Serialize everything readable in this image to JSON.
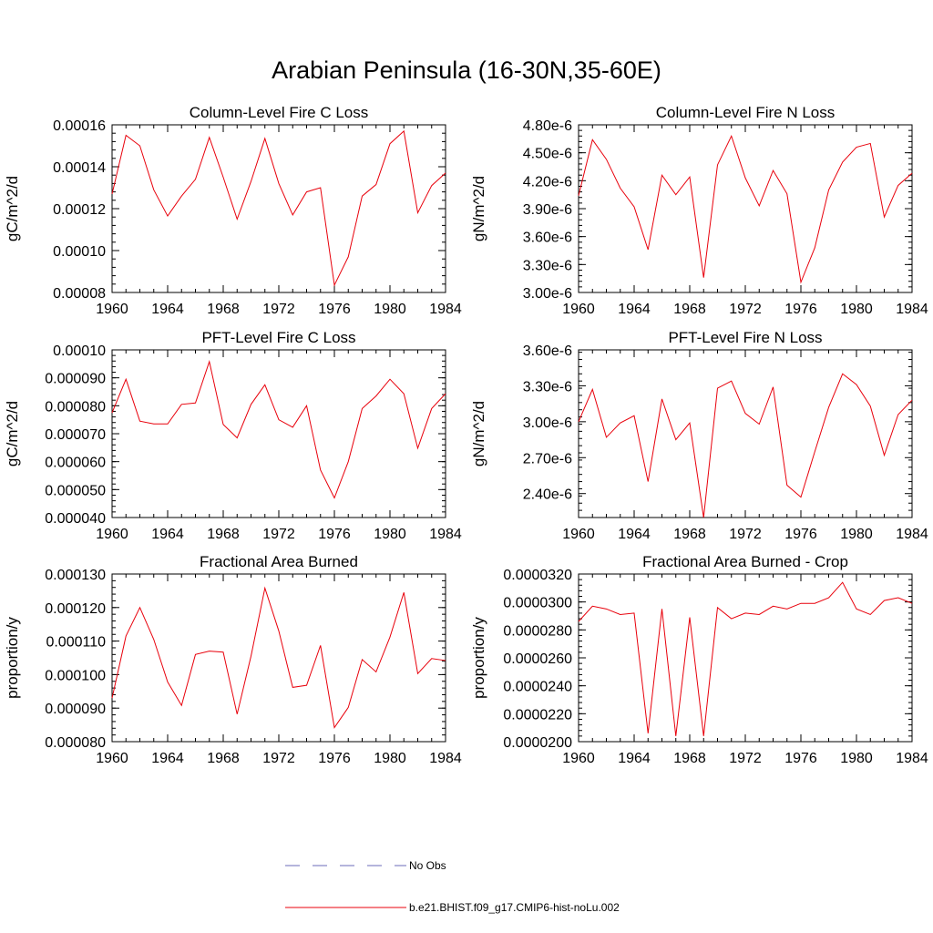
{
  "figure": {
    "title": "Arabian Peninsula (16-30N,35-60E)",
    "line_color": "#e8000b",
    "obs_color": "#6b6bb8"
  },
  "legend": {
    "items": [
      {
        "label": "No Obs",
        "style": "dashed",
        "color": "#6b6bb8"
      },
      {
        "label": "b.e21.BHIST.f09_g17.CMIP6-hist-noLu.002",
        "style": "solid",
        "color": "#e8000b"
      }
    ]
  },
  "chart_data": [
    {
      "type": "line",
      "title": "Column-Level Fire C Loss",
      "ylabel": "gC/m^2/d",
      "xlim": [
        1960,
        1984
      ],
      "ylim": [
        8e-05,
        0.00016
      ],
      "xticks": [
        1960,
        1964,
        1968,
        1972,
        1976,
        1980,
        1984
      ],
      "yticks": [
        8e-05,
        0.0001,
        0.00012,
        0.00014,
        0.00016
      ],
      "ytick_labels": [
        "0.00008",
        "0.00010",
        "0.00012",
        "0.00014",
        "0.00016"
      ],
      "x": [
        1960,
        1961,
        1962,
        1963,
        1964,
        1965,
        1966,
        1967,
        1968,
        1969,
        1970,
        1971,
        1972,
        1973,
        1974,
        1975,
        1976,
        1977,
        1978,
        1979,
        1980,
        1981,
        1982,
        1983,
        1984
      ],
      "series": [
        {
          "name": "b.e21.BHIST.f09_g17.CMIP6-hist-noLu.002",
          "values": [
            0.000127,
            0.000155,
            0.00015,
            0.000129,
            0.0001165,
            0.000126,
            0.000134,
            0.000154,
            0.000135,
            0.000115,
            0.000133,
            0.0001535,
            0.000132,
            0.000117,
            0.000128,
            0.00013,
            8.35e-05,
            9.7e-05,
            0.000126,
            0.0001315,
            0.000151,
            0.000157,
            0.000118,
            0.000131,
            0.000137
          ]
        }
      ]
    },
    {
      "type": "line",
      "title": "Column-Level Fire N Loss",
      "ylabel": "gN/m^2/d",
      "xlim": [
        1960,
        1984
      ],
      "ylim": [
        3e-06,
        4.8e-06
      ],
      "xticks": [
        1960,
        1964,
        1968,
        1972,
        1976,
        1980,
        1984
      ],
      "yticks": [
        3e-06,
        3.3e-06,
        3.6e-06,
        3.9e-06,
        4.2e-06,
        4.5e-06,
        4.8e-06
      ],
      "ytick_labels": [
        "3.00e-6",
        "3.30e-6",
        "3.60e-6",
        "3.90e-6",
        "4.20e-6",
        "4.50e-6",
        "4.80e-6"
      ],
      "x": [
        1960,
        1961,
        1962,
        1963,
        1964,
        1965,
        1966,
        1967,
        1968,
        1969,
        1970,
        1971,
        1972,
        1973,
        1974,
        1975,
        1976,
        1977,
        1978,
        1979,
        1980,
        1981,
        1982,
        1983,
        1984
      ],
      "series": [
        {
          "name": "b.e21.BHIST.f09_g17.CMIP6-hist-noLu.002",
          "values": [
            4.04e-06,
            4.64e-06,
            4.43e-06,
            4.12e-06,
            3.92e-06,
            3.46e-06,
            4.26e-06,
            4.05e-06,
            4.24e-06,
            3.16e-06,
            4.37e-06,
            4.68e-06,
            4.23e-06,
            3.93e-06,
            4.31e-06,
            4.06e-06,
            3.11e-06,
            3.48e-06,
            4.1e-06,
            4.4e-06,
            4.56e-06,
            4.6e-06,
            3.81e-06,
            4.15e-06,
            4.28e-06
          ]
        }
      ]
    },
    {
      "type": "line",
      "title": "PFT-Level Fire C Loss",
      "ylabel": "gC/m^2/d",
      "xlim": [
        1960,
        1984
      ],
      "ylim": [
        4e-05,
        0.0001
      ],
      "xticks": [
        1960,
        1964,
        1968,
        1972,
        1976,
        1980,
        1984
      ],
      "yticks": [
        4e-05,
        5e-05,
        6e-05,
        7e-05,
        8e-05,
        9e-05,
        0.0001
      ],
      "ytick_labels": [
        "0.000040",
        "0.000050",
        "0.000060",
        "0.000070",
        "0.000080",
        "0.000090",
        "0.00010"
      ],
      "x": [
        1960,
        1961,
        1962,
        1963,
        1964,
        1965,
        1966,
        1967,
        1968,
        1969,
        1970,
        1971,
        1972,
        1973,
        1974,
        1975,
        1976,
        1977,
        1978,
        1979,
        1980,
        1981,
        1982,
        1983,
        1984
      ],
      "series": [
        {
          "name": "b.e21.BHIST.f09_g17.CMIP6-hist-noLu.002",
          "values": [
            7.75e-05,
            8.95e-05,
            7.45e-05,
            7.35e-05,
            7.35e-05,
            8.05e-05,
            8.1e-05,
            9.58e-05,
            7.33e-05,
            6.85e-05,
            8.05e-05,
            8.75e-05,
            7.5e-05,
            7.23e-05,
            8e-05,
            5.7e-05,
            4.7e-05,
            6e-05,
            7.9e-05,
            8.35e-05,
            8.95e-05,
            8.43e-05,
            6.48e-05,
            7.9e-05,
            8.43e-05
          ]
        }
      ]
    },
    {
      "type": "line",
      "title": "PFT-Level Fire N Loss",
      "ylabel": "gN/m^2/d",
      "xlim": [
        1960,
        1984
      ],
      "ylim": [
        2.2e-06,
        3.6e-06
      ],
      "xticks": [
        1960,
        1964,
        1968,
        1972,
        1976,
        1980,
        1984
      ],
      "yticks": [
        2.4e-06,
        2.7e-06,
        3e-06,
        3.3e-06,
        3.6e-06
      ],
      "ytick_labels": [
        "2.40e-6",
        "2.70e-6",
        "3.00e-6",
        "3.30e-6",
        "3.60e-6"
      ],
      "x": [
        1960,
        1961,
        1962,
        1963,
        1964,
        1965,
        1966,
        1967,
        1968,
        1969,
        1970,
        1971,
        1972,
        1973,
        1974,
        1975,
        1976,
        1977,
        1978,
        1979,
        1980,
        1981,
        1982,
        1983,
        1984
      ],
      "series": [
        {
          "name": "b.e21.BHIST.f09_g17.CMIP6-hist-noLu.002",
          "values": [
            3e-06,
            3.27e-06,
            2.87e-06,
            2.99e-06,
            3.05e-06,
            2.5e-06,
            3.19e-06,
            2.85e-06,
            2.99e-06,
            2.2e-06,
            3.28e-06,
            3.34e-06,
            3.07e-06,
            2.98e-06,
            3.29e-06,
            2.47e-06,
            2.37e-06,
            2.75e-06,
            3.12e-06,
            3.4e-06,
            3.31e-06,
            3.13e-06,
            2.72e-06,
            3.06e-06,
            3.18e-06
          ]
        }
      ]
    },
    {
      "type": "line",
      "title": "Fractional Area Burned",
      "ylabel": "proportion/y",
      "xlim": [
        1960,
        1984
      ],
      "ylim": [
        8e-05,
        0.00013
      ],
      "xticks": [
        1960,
        1964,
        1968,
        1972,
        1976,
        1980,
        1984
      ],
      "yticks": [
        8e-05,
        9e-05,
        0.0001,
        0.00011,
        0.00012,
        0.00013
      ],
      "ytick_labels": [
        "0.000080",
        "0.000090",
        "0.000100",
        "0.000110",
        "0.000120",
        "0.000130"
      ],
      "x": [
        1960,
        1961,
        1962,
        1963,
        1964,
        1965,
        1966,
        1967,
        1968,
        1969,
        1970,
        1971,
        1972,
        1973,
        1974,
        1975,
        1976,
        1977,
        1978,
        1979,
        1980,
        1981,
        1982,
        1983,
        1984
      ],
      "series": [
        {
          "name": "b.e21.BHIST.f09_g17.CMIP6-hist-noLu.002",
          "values": [
            9.3e-05,
            0.0001115,
            0.00012,
            0.0001105,
            9.78e-05,
            9.08e-05,
            0.000106,
            0.000107,
            0.0001067,
            8.82e-05,
            0.0001055,
            0.0001258,
            0.000113,
            9.62e-05,
            9.68e-05,
            0.0001087,
            8.42e-05,
            9.02e-05,
            0.0001045,
            0.0001008,
            0.0001112,
            0.0001245,
            0.0001003,
            0.0001048,
            0.0001042
          ]
        }
      ]
    },
    {
      "type": "line",
      "title": "Fractional Area Burned - Crop",
      "ylabel": "proportion/y",
      "xlim": [
        1960,
        1984
      ],
      "ylim": [
        2e-05,
        3.2e-05
      ],
      "xticks": [
        1960,
        1964,
        1968,
        1972,
        1976,
        1980,
        1984
      ],
      "yticks": [
        2e-05,
        2.2e-05,
        2.4e-05,
        2.6e-05,
        2.8e-05,
        3e-05,
        3.2e-05
      ],
      "ytick_labels": [
        "0.0000200",
        "0.0000220",
        "0.0000240",
        "0.0000260",
        "0.0000280",
        "0.0000300",
        "0.0000320"
      ],
      "x": [
        1960,
        1961,
        1962,
        1963,
        1964,
        1965,
        1966,
        1967,
        1968,
        1969,
        1970,
        1971,
        1972,
        1973,
        1974,
        1975,
        1976,
        1977,
        1978,
        1979,
        1980,
        1981,
        1982,
        1983,
        1984
      ],
      "series": [
        {
          "name": "b.e21.BHIST.f09_g17.CMIP6-hist-noLu.002",
          "values": [
            2.86e-05,
            2.97e-05,
            2.95e-05,
            2.91e-05,
            2.92e-05,
            2.06e-05,
            2.95e-05,
            2.04e-05,
            2.89e-05,
            2.04e-05,
            2.96e-05,
            2.88e-05,
            2.92e-05,
            2.91e-05,
            2.97e-05,
            2.95e-05,
            2.99e-05,
            2.99e-05,
            3.03e-05,
            3.14e-05,
            2.95e-05,
            2.91e-05,
            3.01e-05,
            3.03e-05,
            2.99e-05
          ]
        }
      ]
    }
  ]
}
